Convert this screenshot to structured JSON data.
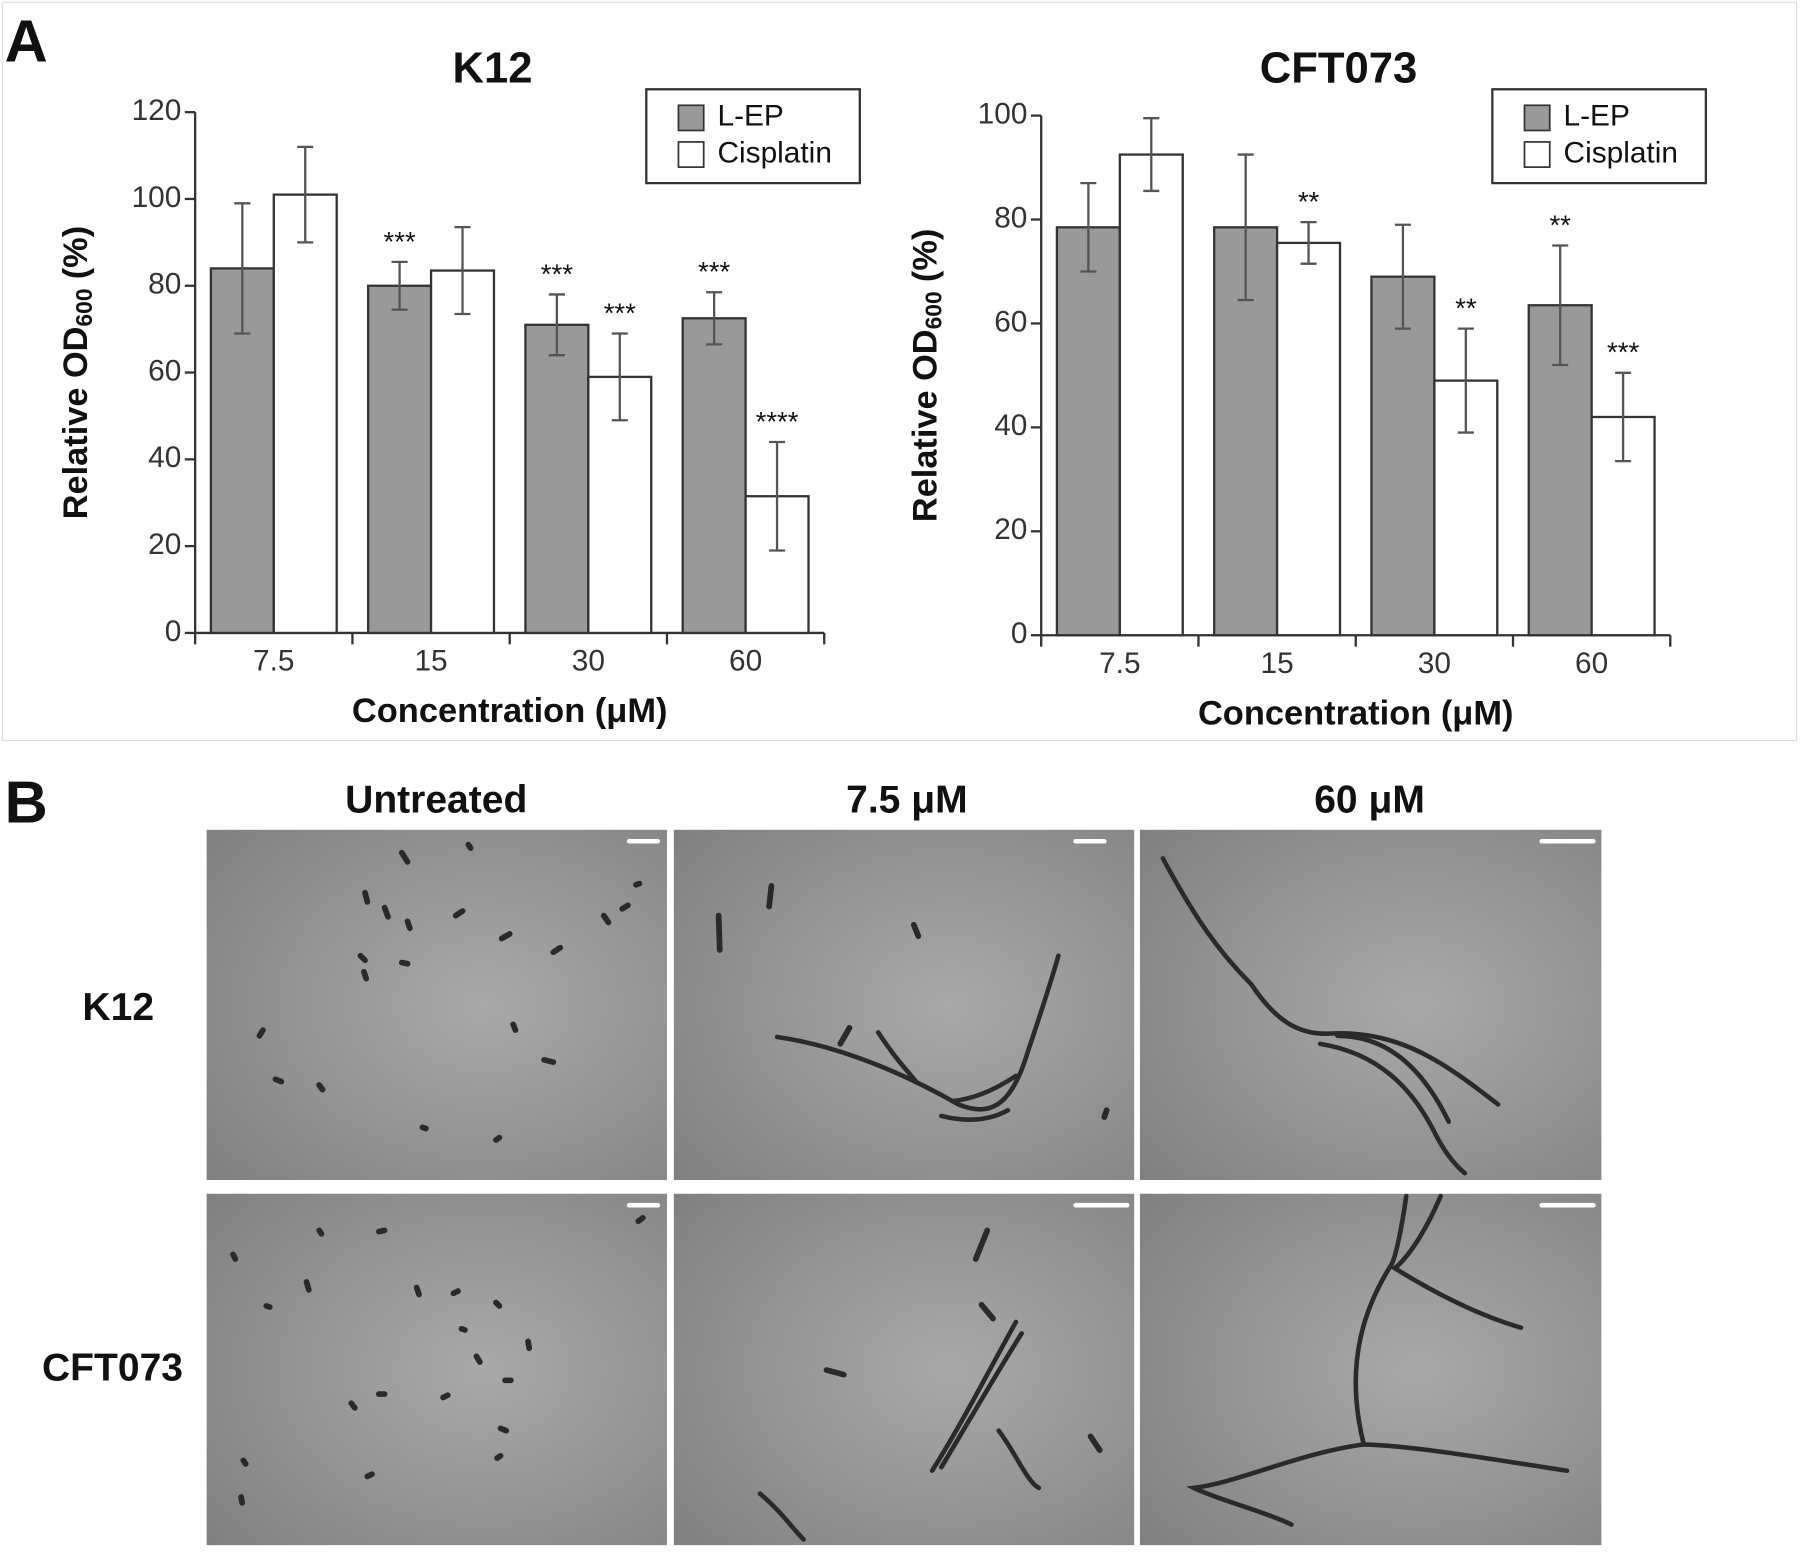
{
  "panels": {
    "a": "A",
    "b": "B"
  },
  "chart_data": [
    {
      "type": "bar",
      "title": "K12",
      "x_label": "Concentration (μM)",
      "y_label": {
        "text": "Relative OD",
        "subscript": "600",
        "suffix": "(%)"
      },
      "categories": [
        "7.5",
        "15",
        "30",
        "60"
      ],
      "ylim": [
        0,
        120
      ],
      "yticks": [
        0,
        20,
        40,
        60,
        80,
        100,
        120
      ],
      "legend": "top-right",
      "series": [
        {
          "name": "L-EP",
          "color": "#999999",
          "values": [
            84,
            80,
            71,
            72.5
          ],
          "errors": [
            15,
            5.5,
            7,
            6
          ],
          "significance": [
            null,
            "***",
            "***",
            "***"
          ]
        },
        {
          "name": "Cisplatin",
          "color": "#ffffff",
          "values": [
            101,
            83.5,
            59,
            31.5
          ],
          "errors": [
            11,
            10,
            10,
            12.5
          ],
          "significance": [
            null,
            null,
            "***",
            "****"
          ]
        }
      ]
    },
    {
      "type": "bar",
      "title": "CFT073",
      "x_label": "Concentration (μM)",
      "y_label": {
        "text": "Relative OD",
        "subscript": "600",
        "suffix": "(%)"
      },
      "categories": [
        "7.5",
        "15",
        "30",
        "60"
      ],
      "ylim": [
        0,
        100
      ],
      "yticks": [
        0,
        20,
        40,
        60,
        80,
        100
      ],
      "legend": "top-right",
      "series": [
        {
          "name": "L-EP",
          "color": "#999999",
          "values": [
            78.5,
            78.5,
            69,
            63.5
          ],
          "errors": [
            8.5,
            14,
            10,
            11.5
          ],
          "significance": [
            null,
            null,
            null,
            "**"
          ]
        },
        {
          "name": "Cisplatin",
          "color": "#ffffff",
          "values": [
            92.5,
            75.5,
            49,
            42
          ],
          "errors": [
            7,
            4,
            10,
            8.5
          ],
          "significance": [
            null,
            "**",
            "**",
            "***"
          ]
        }
      ]
    }
  ],
  "micrographs": {
    "columns": [
      "Untreated",
      "7.5 μM",
      "60 μM"
    ],
    "rows": [
      "K12",
      "CFT073"
    ]
  }
}
